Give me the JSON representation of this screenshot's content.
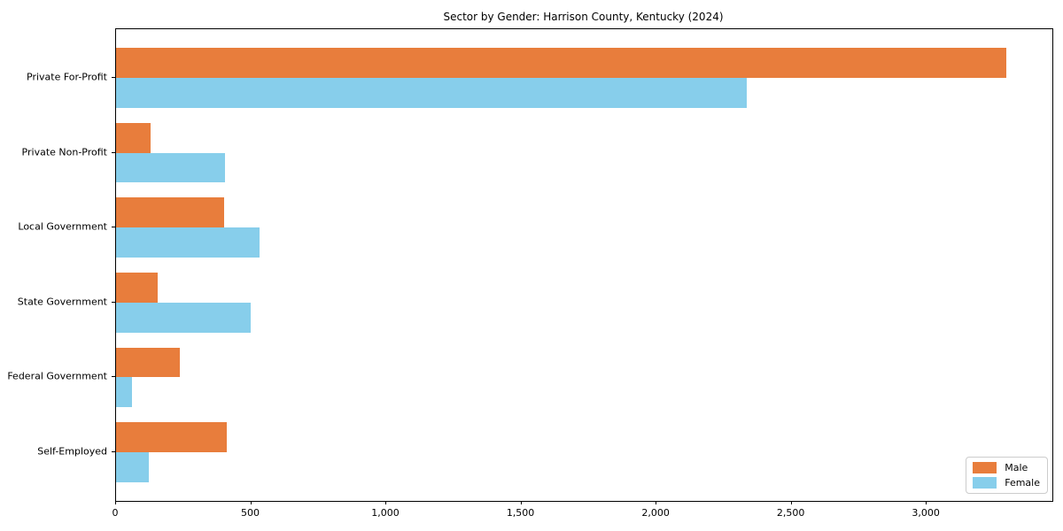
{
  "chart_data": {
    "type": "bar",
    "orientation": "horizontal",
    "title": "Sector by Gender: Harrison County, Kentucky (2024)",
    "categories": [
      "Private For-Profit",
      "Private Non-Profit",
      "Local Government",
      "State Government",
      "Federal Government",
      "Self-Employed"
    ],
    "series": [
      {
        "name": "Male",
        "color": "#e87d3c",
        "values": [
          3295,
          128,
          401,
          153,
          235,
          410
        ]
      },
      {
        "name": "Female",
        "color": "#87ceeb",
        "values": [
          2333,
          404,
          532,
          497,
          60,
          120
        ]
      }
    ],
    "xlim": [
      0,
      3465
    ],
    "xticks": [
      0,
      500,
      1000,
      1500,
      2000,
      2500,
      3000
    ],
    "xtick_labels": [
      "0",
      "500",
      "1,000",
      "1,500",
      "2,000",
      "2,500",
      "3,000"
    ],
    "xlabel": "",
    "ylabel": "",
    "grid": false,
    "legend_position": "lower right",
    "background_color": "#ffffff",
    "spine_color": "#000000"
  }
}
